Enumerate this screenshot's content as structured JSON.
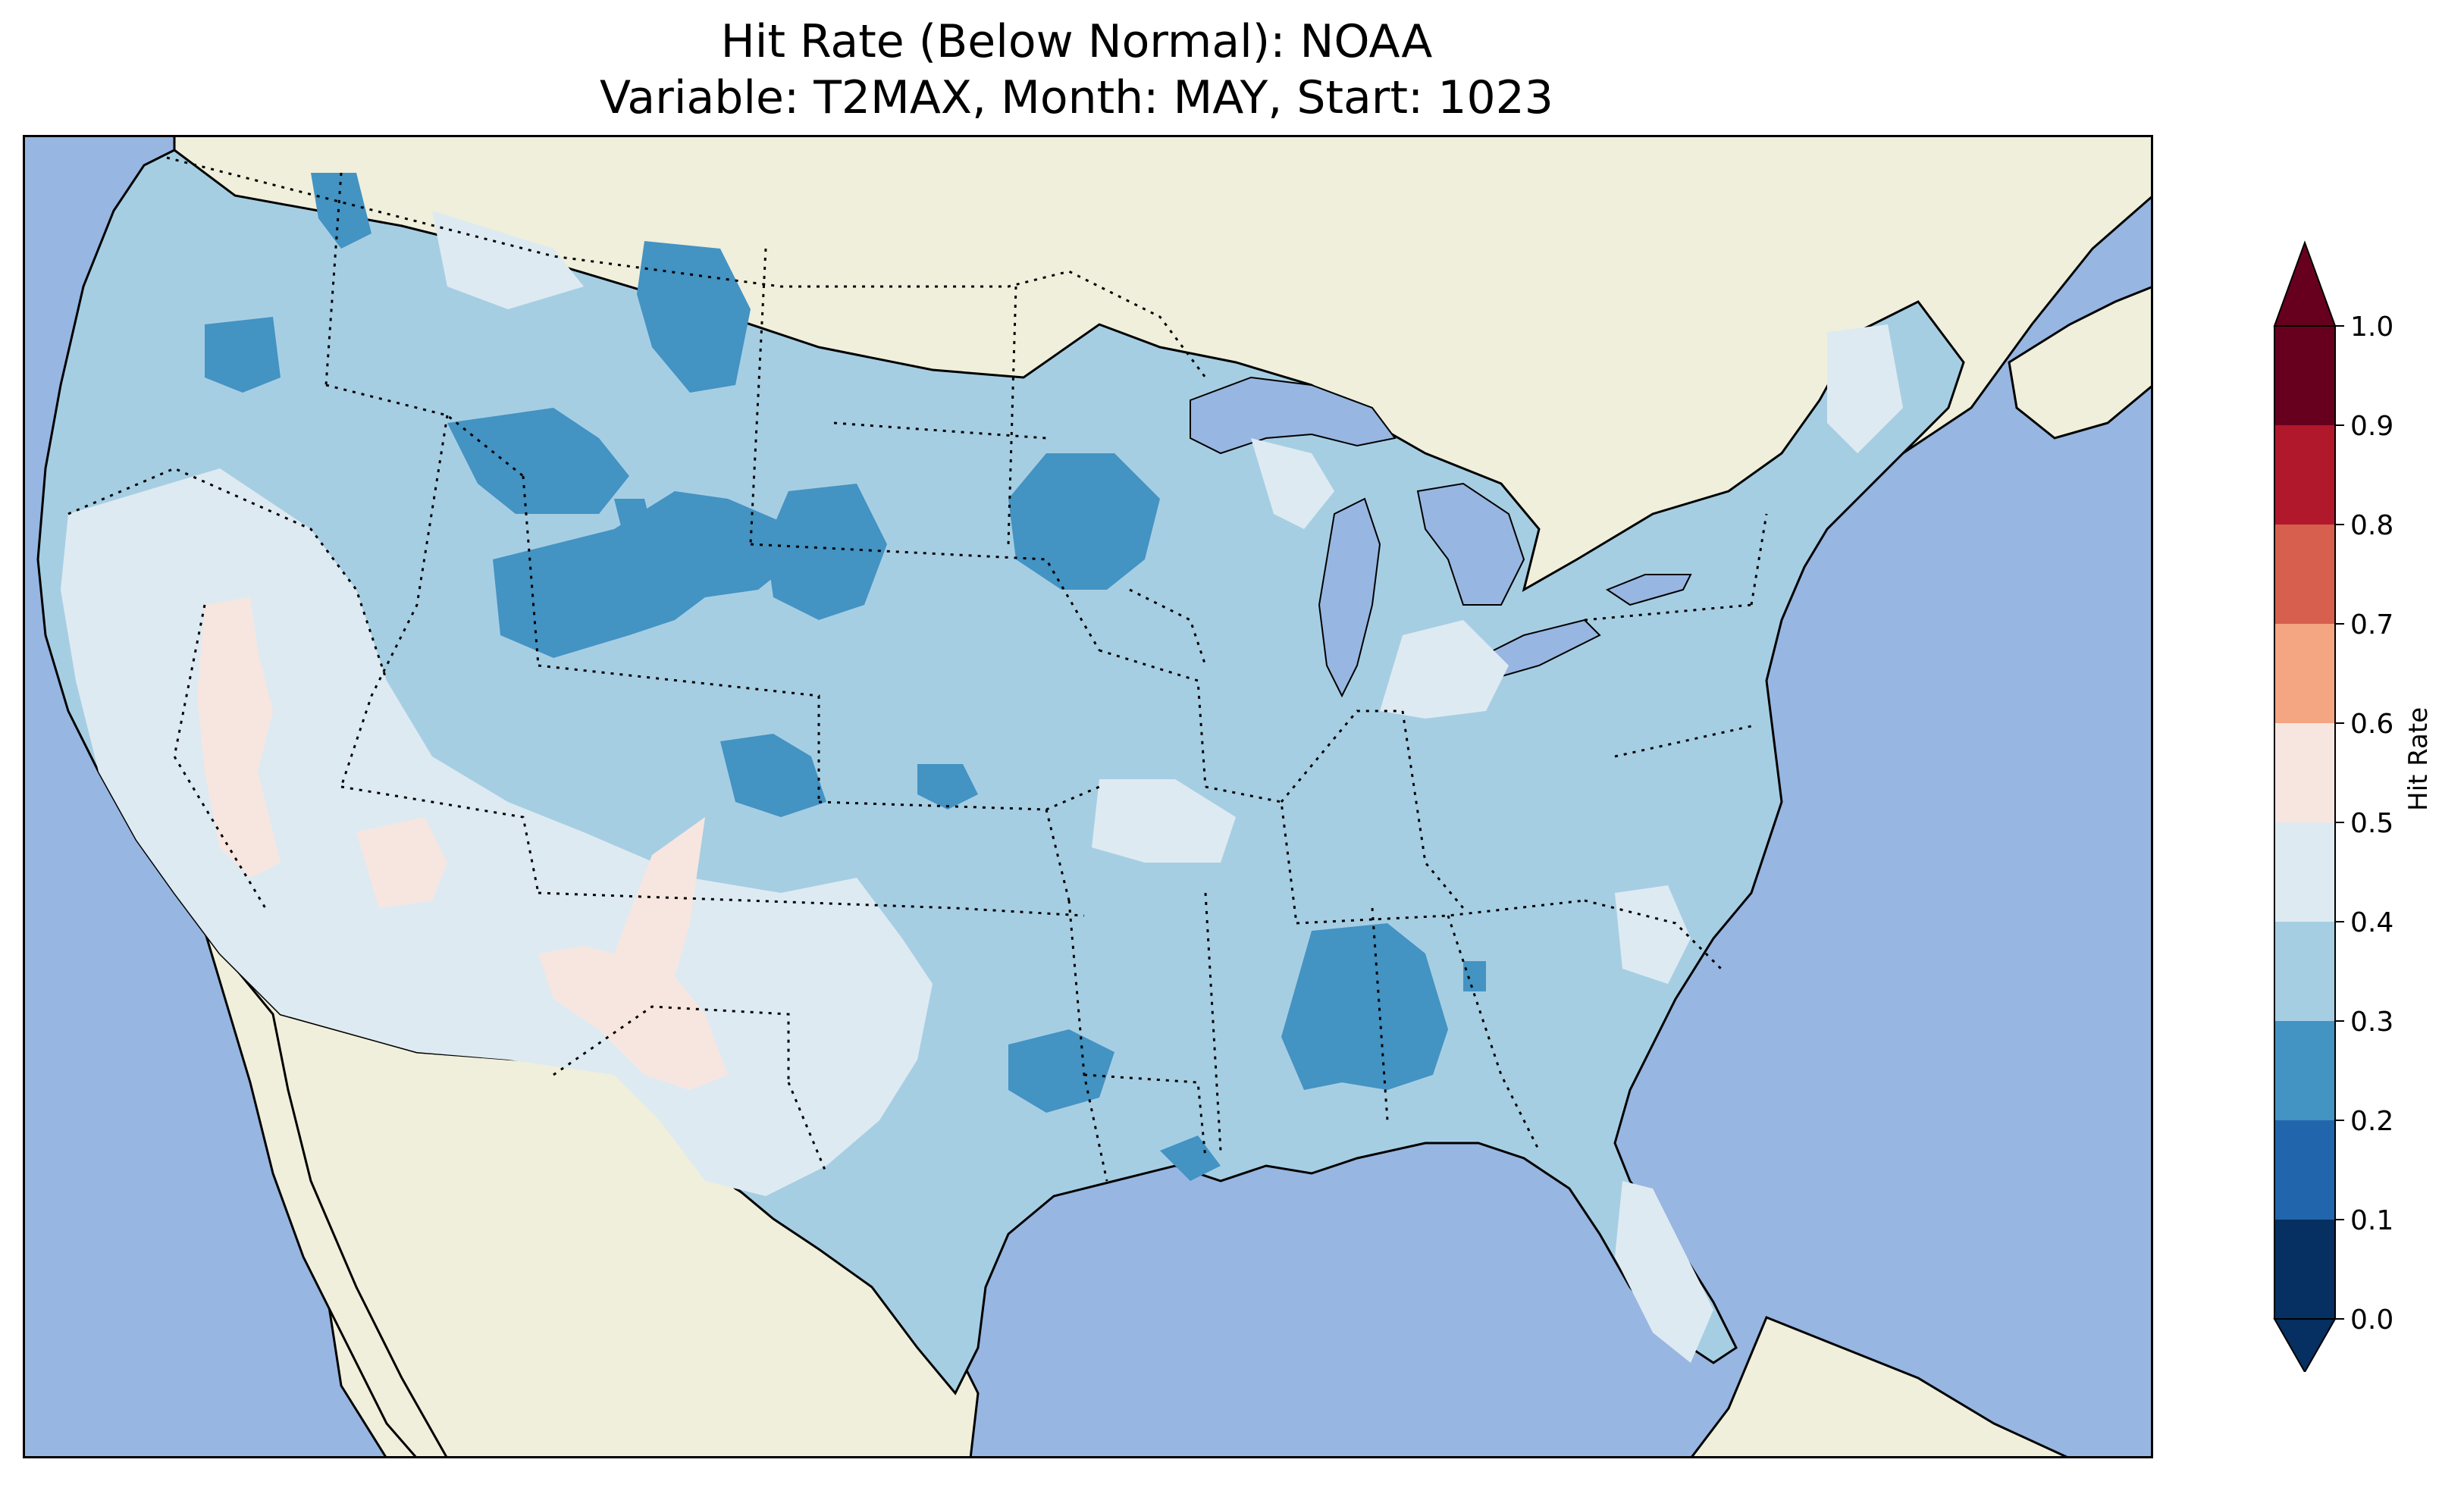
{
  "title": {
    "line1": "Hit Rate (Below Normal): NOAA",
    "line2": "Variable: T2MAX, Month: MAY, Start: 1023"
  },
  "colorbar": {
    "label": "Hit Rate",
    "ticks": [
      "0.0",
      "0.1",
      "0.2",
      "0.3",
      "0.4",
      "0.5",
      "0.6",
      "0.7",
      "0.8",
      "0.9",
      "1.0"
    ],
    "bins": [
      {
        "range": [
          0.0,
          0.1
        ],
        "color": "#053061"
      },
      {
        "range": [
          0.1,
          0.2
        ],
        "color": "#2166ac"
      },
      {
        "range": [
          0.2,
          0.3
        ],
        "color": "#4393c3"
      },
      {
        "range": [
          0.3,
          0.4
        ],
        "color": "#a6cee3"
      },
      {
        "range": [
          0.4,
          0.5
        ],
        "color": "#deeaf2"
      },
      {
        "range": [
          0.5,
          0.6
        ],
        "color": "#f7e6df"
      },
      {
        "range": [
          0.6,
          0.7
        ],
        "color": "#f4a582"
      },
      {
        "range": [
          0.7,
          0.8
        ],
        "color": "#d6604d"
      },
      {
        "range": [
          0.8,
          0.9
        ],
        "color": "#b2182b"
      },
      {
        "range": [
          0.9,
          1.0
        ],
        "color": "#67001f"
      }
    ],
    "extend": "both"
  },
  "map": {
    "ocean_color": "#97b6e1",
    "land_color": "#efefdb",
    "dominant_value_color": "#a6cee3",
    "regions": [
      {
        "name": "Pacific Northwest",
        "value_bin": "0.3-0.4"
      },
      {
        "name": "Great Basin / Southwest",
        "value_bin": "0.4-0.5"
      },
      {
        "name": "Central Rockies",
        "value_bin": "0.2-0.3"
      },
      {
        "name": "Deep South (Alabama)",
        "value_bin": "0.2-0.3"
      },
      {
        "name": "Southern California / New Mexico patches",
        "value_bin": "0.5-0.6"
      },
      {
        "name": "Florida",
        "value_bin": "0.4-0.5"
      }
    ]
  }
}
